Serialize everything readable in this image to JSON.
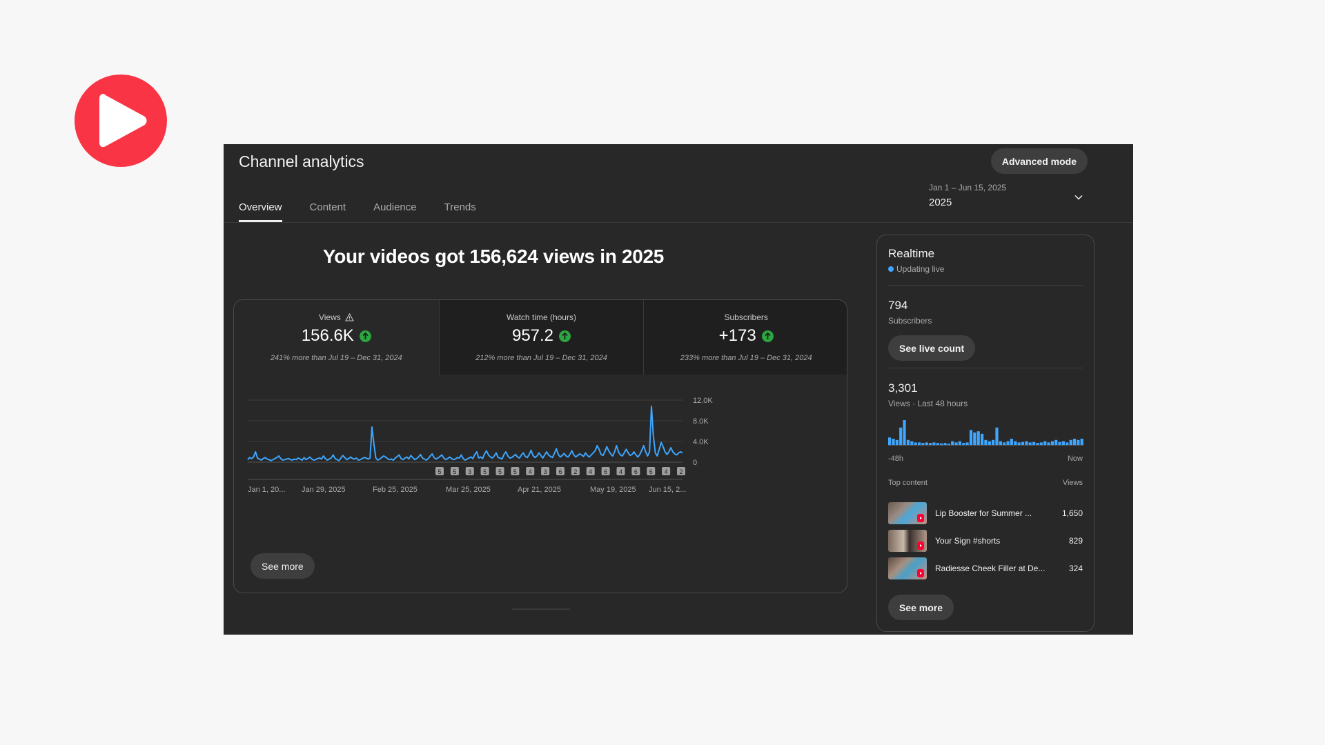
{
  "header": {
    "title": "Channel analytics",
    "advanced_mode_label": "Advanced mode",
    "date_range": "Jan 1 – Jun 15, 2025",
    "date_label": "2025"
  },
  "tabs": [
    {
      "label": "Overview",
      "active": true
    },
    {
      "label": "Content",
      "active": false
    },
    {
      "label": "Audience",
      "active": false
    },
    {
      "label": "Trends",
      "active": false
    }
  ],
  "headline": "Your videos got 156,624 views in 2025",
  "metrics": [
    {
      "label": "Views",
      "value": "156.6K",
      "comparison": "241% more than Jul 19 – Dec 31, 2024"
    },
    {
      "label": "Watch time (hours)",
      "value": "957.2",
      "comparison": "212% more than Jul 19 – Dec 31, 2024"
    },
    {
      "label": "Subscribers",
      "value": "+173",
      "comparison": "233% more than Jul 19 – Dec 31, 2024"
    }
  ],
  "chart_data": {
    "type": "line",
    "title": "",
    "xlabel": "",
    "ylabel": "",
    "y_ticks": [
      "12.0K",
      "8.0K",
      "4.0K",
      "0"
    ],
    "ylim": [
      0,
      12000
    ],
    "x_tick_labels": [
      "Jan 1, 20...",
      "Jan 29, 2025",
      "Feb 25, 2025",
      "Mar 25, 2025",
      "Apr 21, 2025",
      "May 19, 2025",
      "Jun 15, 2..."
    ],
    "grid": true,
    "series": [
      {
        "color": "#3ea6ff",
        "values": [
          500,
          900,
          700,
          1000,
          2000,
          800,
          600,
          400,
          700,
          900,
          600,
          500,
          300,
          500,
          700,
          900,
          1200,
          700,
          400,
          500,
          600,
          700,
          500,
          400,
          600,
          500,
          800,
          600,
          400,
          900,
          500,
          700,
          1000,
          600,
          400,
          500,
          700,
          800,
          600,
          1200,
          700,
          400,
          600,
          800,
          1400,
          700,
          500,
          300,
          800,
          1300,
          900,
          500,
          700,
          1000,
          700,
          600,
          800,
          400,
          500,
          700,
          900,
          800,
          600,
          800,
          6800,
          3500,
          800,
          400,
          600,
          900,
          1200,
          1000,
          700,
          500,
          600,
          400,
          800,
          1100,
          1400,
          700,
          500,
          800,
          1000,
          600,
          1300,
          900,
          500,
          700,
          1000,
          1500,
          800,
          600,
          400,
          700,
          1200,
          1600,
          900,
          600,
          800,
          1100,
          1400,
          800,
          500,
          700,
          1000,
          700,
          500,
          600,
          900,
          800,
          1400,
          700,
          400,
          600,
          800,
          1000,
          700,
          1500,
          2000,
          800,
          1000,
          700,
          1600,
          2200,
          1400,
          1000,
          800,
          1200,
          1800,
          900,
          800,
          600,
          1500,
          2000,
          1200,
          800,
          900,
          1200,
          1500,
          1000,
          800,
          1400,
          1800,
          1100,
          900,
          1500,
          2300,
          1300,
          900,
          1200,
          1800,
          1300,
          800,
          1400,
          2000,
          1400,
          1100,
          900,
          1700,
          2600,
          1500,
          1000,
          1300,
          1700,
          1200,
          1000,
          1500,
          2200,
          1400,
          1000,
          1300,
          1600,
          1400,
          1100,
          1800,
          1300,
          1000,
          1400,
          1800,
          2200,
          3200,
          2500,
          1500,
          1300,
          2000,
          3000,
          2200,
          1600,
          1200,
          2000,
          3200,
          2000,
          1400,
          1200,
          1800,
          2500,
          1800,
          1300,
          1500,
          2000,
          1400,
          1000,
          1500,
          2300,
          3200,
          2000,
          1200,
          2000,
          10800,
          5000,
          1800,
          1200,
          2500,
          3800,
          3000,
          2000,
          1500,
          2000,
          2800,
          2000,
          1600,
          1400,
          1800,
          2000,
          1800
        ]
      }
    ],
    "markers": [
      "5",
      "5",
      "3",
      "5",
      "5",
      "5",
      "4",
      "3",
      "6",
      "2",
      "4",
      "6",
      "4",
      "6",
      "6",
      "4",
      "2"
    ]
  },
  "main_see_more": "See more",
  "realtime": {
    "title": "Realtime",
    "status": "Updating live",
    "subscribers_value": "794",
    "subscribers_label": "Subscribers",
    "live_count_button": "See live count",
    "views_value": "3,301",
    "views_label": "Views · Last 48 hours",
    "axis_left": "-48h",
    "axis_right": "Now",
    "bars": [
      30,
      25,
      20,
      70,
      100,
      20,
      15,
      10,
      10,
      8,
      10,
      8,
      10,
      8,
      6,
      8,
      5,
      15,
      10,
      15,
      8,
      10,
      60,
      50,
      55,
      45,
      20,
      15,
      20,
      70,
      15,
      10,
      15,
      25,
      15,
      10,
      12,
      15,
      10,
      12,
      8,
      10,
      15,
      10,
      15,
      20,
      12,
      15,
      10,
      20,
      25,
      20,
      25
    ],
    "top_content_label": "Top content",
    "views_col_label": "Views",
    "top_content": [
      {
        "title": "Lip Booster for Summer ...",
        "views": "1,650"
      },
      {
        "title": "Your Sign #shorts",
        "views": "829"
      },
      {
        "title": "Radiesse Cheek Filler at De...",
        "views": "324"
      }
    ],
    "see_more": "See more"
  },
  "colors": {
    "accent": "#3ea6ff",
    "logo_red": "#f93545",
    "up_green": "#2ba640",
    "panel_bg": "#282828"
  }
}
